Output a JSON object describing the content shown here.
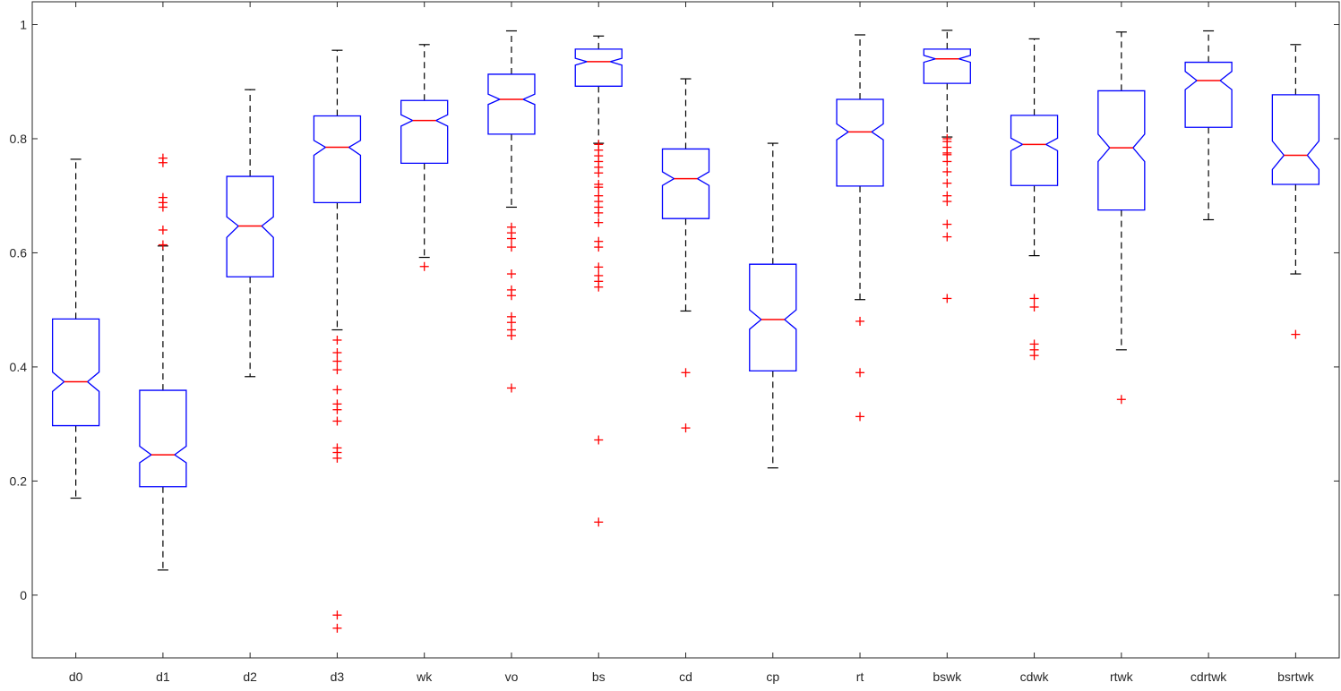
{
  "chart_data": {
    "type": "box",
    "title": "",
    "xlabel": "",
    "ylabel": "",
    "ylim": [
      -0.11,
      1.04
    ],
    "yticks": [
      0,
      0.2,
      0.4,
      0.6,
      0.8,
      1
    ],
    "ytick_labels": [
      "0",
      "0.2",
      "0.4",
      "0.6",
      "0.8",
      "1"
    ],
    "notched": true,
    "grid": false,
    "legend": "none",
    "colors": {
      "box": "#0000ff",
      "median": "#ff0000",
      "whisker": "#000000",
      "outlier": "#ff0000",
      "axis": "#262626"
    },
    "categories": [
      "d0",
      "d1",
      "d2",
      "d3",
      "wk",
      "vo",
      "bs",
      "cd",
      "cp",
      "rt",
      "bswk",
      "cdwk",
      "rtwk",
      "cdrtwk",
      "bsrtwk"
    ],
    "boxes": [
      {
        "category": "d0",
        "whisker_low": 0.17,
        "q1": 0.297,
        "median": 0.374,
        "q3": 0.484,
        "whisker_high": 0.764,
        "notch_low": 0.357,
        "notch_high": 0.391,
        "outliers": []
      },
      {
        "category": "d1",
        "whisker_low": 0.044,
        "q1": 0.19,
        "median": 0.246,
        "q3": 0.359,
        "whisker_high": 0.612,
        "notch_low": 0.232,
        "notch_high": 0.261,
        "outliers": [
          0.614,
          0.64,
          0.68,
          0.688,
          0.697,
          0.758,
          0.766
        ]
      },
      {
        "category": "d2",
        "whisker_low": 0.383,
        "q1": 0.558,
        "median": 0.647,
        "q3": 0.734,
        "whisker_high": 0.886,
        "notch_low": 0.627,
        "notch_high": 0.663,
        "outliers": []
      },
      {
        "category": "d3",
        "whisker_low": 0.465,
        "q1": 0.688,
        "median": 0.785,
        "q3": 0.84,
        "whisker_high": 0.955,
        "notch_low": 0.771,
        "notch_high": 0.797,
        "outliers": [
          0.447,
          0.425,
          0.41,
          0.395,
          0.36,
          0.335,
          0.325,
          0.305,
          0.258,
          0.25,
          0.24,
          -0.035,
          -0.058
        ]
      },
      {
        "category": "wk",
        "whisker_low": 0.592,
        "q1": 0.757,
        "median": 0.832,
        "q3": 0.867,
        "whisker_high": 0.965,
        "notch_low": 0.822,
        "notch_high": 0.842,
        "outliers": [
          0.576
        ]
      },
      {
        "category": "vo",
        "whisker_low": 0.68,
        "q1": 0.808,
        "median": 0.869,
        "q3": 0.913,
        "whisker_high": 0.989,
        "notch_low": 0.86,
        "notch_high": 0.878,
        "outliers": [
          0.645,
          0.635,
          0.625,
          0.61,
          0.563,
          0.535,
          0.525,
          0.488,
          0.478,
          0.465,
          0.455,
          0.363
        ]
      },
      {
        "category": "bs",
        "whisker_low": 0.792,
        "q1": 0.892,
        "median": 0.935,
        "q3": 0.957,
        "whisker_high": 0.98,
        "notch_low": 0.929,
        "notch_high": 0.941,
        "outliers": [
          0.79,
          0.78,
          0.77,
          0.76,
          0.75,
          0.74,
          0.72,
          0.715,
          0.7,
          0.69,
          0.68,
          0.67,
          0.653,
          0.62,
          0.61,
          0.575,
          0.56,
          0.55,
          0.54,
          0.272,
          0.128
        ]
      },
      {
        "category": "cd",
        "whisker_low": 0.498,
        "q1": 0.66,
        "median": 0.73,
        "q3": 0.782,
        "whisker_high": 0.905,
        "notch_low": 0.718,
        "notch_high": 0.742,
        "outliers": [
          0.39,
          0.293
        ]
      },
      {
        "category": "cp",
        "whisker_low": 0.223,
        "q1": 0.393,
        "median": 0.483,
        "q3": 0.58,
        "whisker_high": 0.792,
        "notch_low": 0.466,
        "notch_high": 0.5,
        "outliers": []
      },
      {
        "category": "rt",
        "whisker_low": 0.518,
        "q1": 0.717,
        "median": 0.812,
        "q3": 0.869,
        "whisker_high": 0.982,
        "notch_low": 0.798,
        "notch_high": 0.826,
        "outliers": [
          0.48,
          0.39,
          0.313
        ]
      },
      {
        "category": "bswk",
        "whisker_low": 0.803,
        "q1": 0.897,
        "median": 0.94,
        "q3": 0.957,
        "whisker_high": 0.99,
        "notch_low": 0.934,
        "notch_high": 0.946,
        "outliers": [
          0.8,
          0.795,
          0.785,
          0.775,
          0.772,
          0.76,
          0.742,
          0.722,
          0.7,
          0.69,
          0.65,
          0.628,
          0.52
        ]
      },
      {
        "category": "cdwk",
        "whisker_low": 0.595,
        "q1": 0.718,
        "median": 0.79,
        "q3": 0.841,
        "whisker_high": 0.975,
        "notch_low": 0.779,
        "notch_high": 0.801,
        "outliers": [
          0.52,
          0.505,
          0.44,
          0.43,
          0.42
        ]
      },
      {
        "category": "rtwk",
        "whisker_low": 0.43,
        "q1": 0.675,
        "median": 0.784,
        "q3": 0.884,
        "whisker_high": 0.987,
        "notch_low": 0.76,
        "notch_high": 0.808,
        "outliers": [
          0.343
        ]
      },
      {
        "category": "cdrtwk",
        "whisker_low": 0.658,
        "q1": 0.82,
        "median": 0.902,
        "q3": 0.934,
        "whisker_high": 0.989,
        "notch_low": 0.886,
        "notch_high": 0.918,
        "outliers": []
      },
      {
        "category": "bsrtwk",
        "whisker_low": 0.563,
        "q1": 0.72,
        "median": 0.771,
        "q3": 0.877,
        "whisker_high": 0.965,
        "notch_low": 0.746,
        "notch_high": 0.796,
        "outliers": [
          0.457
        ]
      }
    ]
  }
}
